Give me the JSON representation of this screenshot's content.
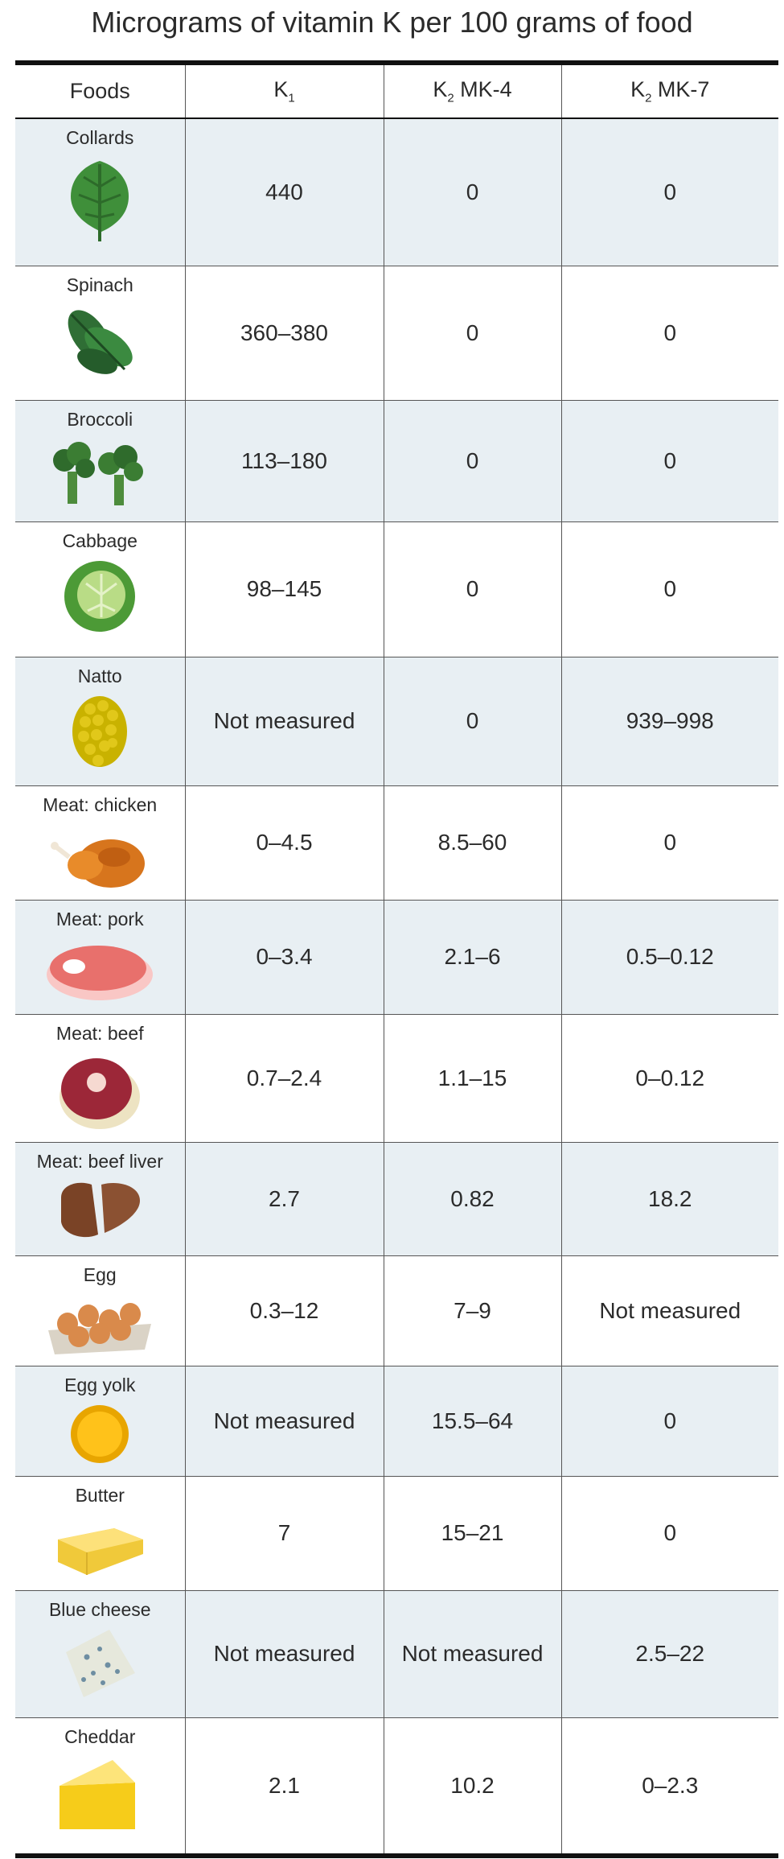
{
  "title": "Micrograms of vitamin K per 100 grams of food",
  "columns": [
    "Foods",
    "K1",
    "K2 MK-4",
    "K2 MK-7"
  ],
  "header": {
    "foods": "Foods",
    "k1_letter": "K",
    "k1_sub": "1",
    "mk4_letter": "K",
    "mk4_sub": "2",
    "mk4_rest": " MK-4",
    "mk7_letter": "K",
    "mk7_sub": "2",
    "mk7_rest": " MK-7"
  },
  "chart_data": {
    "type": "table",
    "title": "Micrograms of vitamin K per 100 grams of food",
    "columns": [
      "Foods",
      "K1",
      "K2 MK-4",
      "K2 MK-7"
    ],
    "rows": [
      {
        "food": "Collards",
        "icon": "collard-leaf-icon",
        "k1": "440",
        "mk4": "0",
        "mk7": "0"
      },
      {
        "food": "Spinach",
        "icon": "spinach-leaves-icon",
        "k1": "360–380",
        "mk4": "0",
        "mk7": "0"
      },
      {
        "food": "Broccoli",
        "icon": "broccoli-icon",
        "k1": "113–180",
        "mk4": "0",
        "mk7": "0"
      },
      {
        "food": "Cabbage",
        "icon": "cabbage-icon",
        "k1": "98–145",
        "mk4": "0",
        "mk7": "0"
      },
      {
        "food": "Natto",
        "icon": "natto-beans-icon",
        "k1": "Not measured",
        "mk4": "0",
        "mk7": "939–998"
      },
      {
        "food": "Meat: chicken",
        "icon": "roast-chicken-icon",
        "k1": "0–4.5",
        "mk4": "8.5–60",
        "mk7": "0"
      },
      {
        "food": "Meat: pork",
        "icon": "pork-steak-icon",
        "k1": "0–3.4",
        "mk4": "2.1–6",
        "mk7": "0.5–0.12"
      },
      {
        "food": "Meat: beef",
        "icon": "beef-steak-icon",
        "k1": "0.7–2.4",
        "mk4": "1.1–15",
        "mk7": "0–0.12"
      },
      {
        "food": "Meat: beef liver",
        "icon": "liver-icon",
        "k1": "2.7",
        "mk4": "0.82",
        "mk7": "18.2"
      },
      {
        "food": "Egg",
        "icon": "egg-carton-icon",
        "k1": "0.3–12",
        "mk4": "7–9",
        "mk7": "Not measured"
      },
      {
        "food": "Egg yolk",
        "icon": "egg-yolk-icon",
        "k1": "Not measured",
        "mk4": "15.5–64",
        "mk7": "0"
      },
      {
        "food": "Butter",
        "icon": "butter-icon",
        "k1": "7",
        "mk4": "15–21",
        "mk7": "0"
      },
      {
        "food": "Blue cheese",
        "icon": "blue-cheese-icon",
        "k1": "Not measured",
        "mk4": "Not measured",
        "mk7": "2.5–22"
      },
      {
        "food": "Cheddar",
        "icon": "cheddar-icon",
        "k1": "2.1",
        "mk4": "10.2",
        "mk7": "0–2.3"
      }
    ]
  }
}
